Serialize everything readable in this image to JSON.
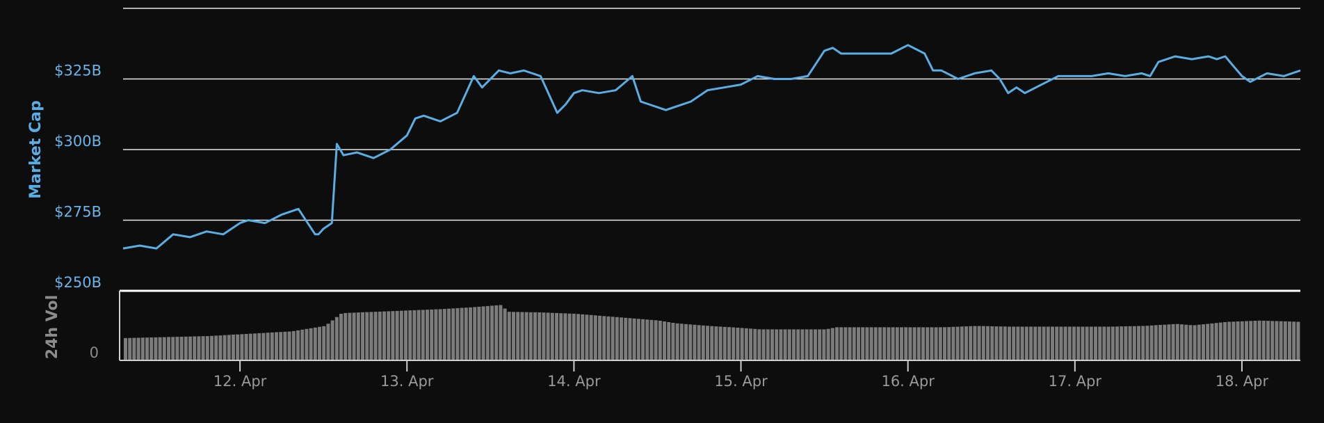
{
  "chart_data": [
    {
      "type": "line",
      "ylabel": "Market Cap",
      "ylim": [
        250,
        350
      ],
      "ytick_values": [
        250,
        275,
        300,
        325
      ],
      "ytick_labels": [
        "$250B",
        "$275B",
        "$300B",
        "$325B"
      ],
      "xlim": [
        11.3,
        18.35
      ],
      "grid": true,
      "color": "#5aaee6",
      "series": [
        {
          "x": [
            11.3,
            11.4,
            11.5,
            11.6,
            11.7,
            11.8,
            11.9,
            12.0,
            12.05,
            12.15,
            12.25,
            12.35,
            12.45,
            12.47,
            12.5,
            12.55,
            12.58,
            12.62,
            12.7,
            12.8,
            12.9,
            13.0,
            13.05,
            13.1,
            13.2,
            13.3,
            13.4,
            13.45,
            13.55,
            13.62,
            13.7,
            13.8,
            13.9,
            13.95,
            14.0,
            14.05,
            14.15,
            14.25,
            14.35,
            14.4,
            14.45,
            14.55,
            14.6,
            14.7,
            14.8,
            14.9,
            15.0,
            15.1,
            15.2,
            15.3,
            15.4,
            15.5,
            15.55,
            15.6,
            15.7,
            15.8,
            15.9,
            16.0,
            16.1,
            16.15,
            16.2,
            16.3,
            16.4,
            16.5,
            16.55,
            16.6,
            16.65,
            16.7,
            16.8,
            16.9,
            17.0,
            17.1,
            17.2,
            17.3,
            17.4,
            17.45,
            17.5,
            17.6,
            17.7,
            17.8,
            17.85,
            17.9,
            18.0,
            18.05,
            18.15,
            18.25,
            18.35
          ],
          "y": [
            265,
            266,
            265,
            270,
            269,
            271,
            270,
            274,
            275,
            274,
            277,
            279,
            270,
            270,
            272,
            274,
            302,
            298,
            299,
            297,
            300,
            305,
            311,
            312,
            310,
            313,
            326,
            322,
            328,
            327,
            328,
            326,
            313,
            316,
            320,
            321,
            320,
            321,
            326,
            317,
            316,
            314,
            315,
            317,
            321,
            322,
            323,
            326,
            325,
            325,
            326,
            335,
            336,
            334,
            334,
            334,
            334,
            337,
            334,
            328,
            328,
            325,
            327,
            328,
            325,
            320,
            322,
            320,
            323,
            326,
            326,
            326,
            327,
            326,
            327,
            326,
            331,
            333,
            332,
            333,
            332,
            333,
            326,
            324,
            327,
            326,
            328
          ]
        }
      ]
    },
    {
      "type": "bar",
      "ylabel": "24h Vol",
      "ytick_labels": [
        "0"
      ],
      "color": "#7c7c7c",
      "x_tick_labels": [
        "12. Apr",
        "13. Apr",
        "14. Apr",
        "15. Apr",
        "16. Apr",
        "17. Apr",
        "18. Apr"
      ],
      "x_tick_values": [
        12,
        13,
        14,
        15,
        16,
        17,
        18
      ],
      "x": [
        11.3,
        11.8,
        12.3,
        12.5,
        12.6,
        12.8,
        13.0,
        13.2,
        13.4,
        13.5,
        13.55,
        13.6,
        13.8,
        14.0,
        14.3,
        14.5,
        14.6,
        14.8,
        15.0,
        15.1,
        15.3,
        15.5,
        15.56,
        15.8,
        16.0,
        16.2,
        16.4,
        16.6,
        16.8,
        17.0,
        17.2,
        17.4,
        17.6,
        17.7,
        17.9,
        18.0,
        18.1,
        18.35
      ],
      "values": [
        32,
        35,
        42,
        50,
        69,
        71,
        73,
        75,
        78,
        80,
        81,
        71,
        70,
        68,
        62,
        58,
        54,
        50,
        47,
        45,
        45,
        45,
        48,
        48,
        48,
        48,
        50,
        49,
        49,
        49,
        49,
        50,
        53,
        51,
        56,
        57,
        58,
        56
      ]
    }
  ]
}
